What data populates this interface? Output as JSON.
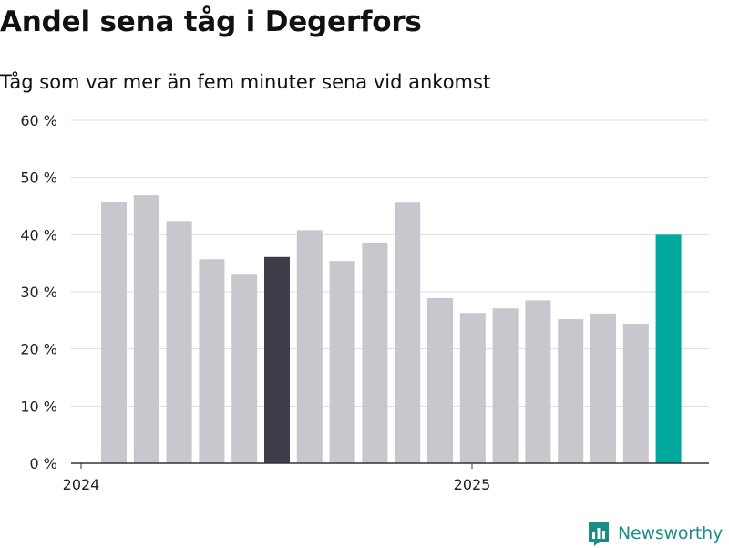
{
  "header": {
    "title": "Andel sena tåg i Degerfors",
    "subtitle": "Tåg som var mer än fem minuter sena vid ankomst"
  },
  "brand": {
    "name": "Newsworthy",
    "color": "#1a8c87",
    "icon": "newsworthy-logo-icon"
  },
  "colors": {
    "default_bar": "#c8c7cd",
    "highlight_bar": "#3f3d4a",
    "latest_bar": "#00a99d",
    "grid": "#dddddd",
    "axis": "#333333"
  },
  "chart_data": {
    "type": "bar",
    "title": "Andel sena tåg i Degerfors",
    "subtitle": "Tåg som var mer än fem minuter sena vid ankomst",
    "x_tick_labels": [
      "2024",
      "2025"
    ],
    "y_tick_labels": [
      "0 %",
      "10 %",
      "20 %",
      "30 %",
      "40 %",
      "50 %",
      "60 %"
    ],
    "ylim": [
      0,
      60
    ],
    "grid": true,
    "values": [
      45.8,
      46.9,
      42.4,
      35.7,
      33.0,
      36.1,
      40.8,
      35.4,
      38.5,
      45.6,
      28.9,
      26.3,
      27.1,
      28.5,
      25.2,
      26.2,
      24.4,
      40.0
    ],
    "highlight_index": 5,
    "latest_index": 17
  }
}
